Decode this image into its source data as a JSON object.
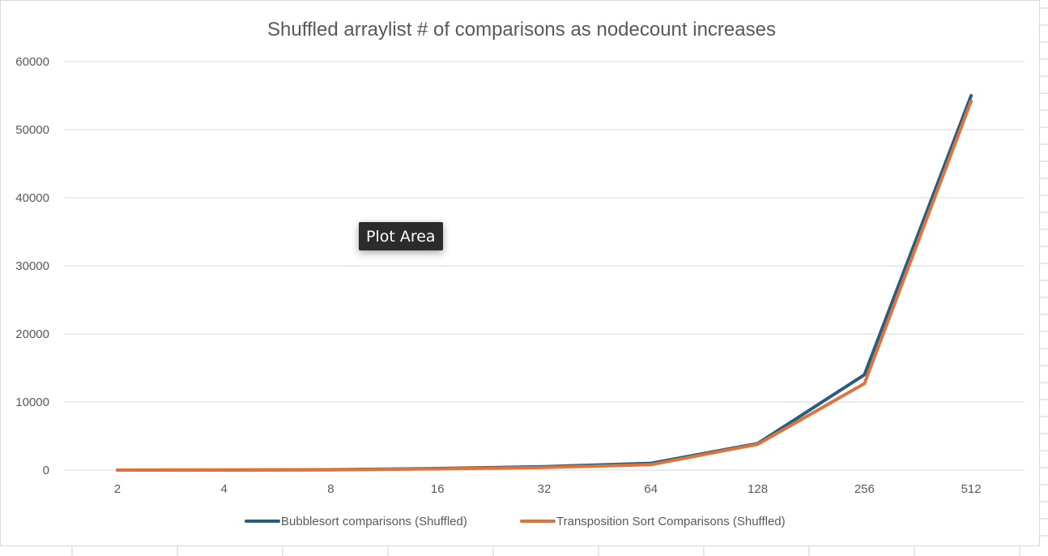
{
  "chart_data": {
    "type": "line",
    "title": "Shuffled arraylist # of comparisons as nodecount increases",
    "xlabel": "",
    "ylabel": "",
    "categories": [
      "2",
      "4",
      "8",
      "16",
      "32",
      "64",
      "128",
      "256",
      "512"
    ],
    "ylim": [
      0,
      60000
    ],
    "yticks": [
      "0",
      "10000",
      "20000",
      "30000",
      "40000",
      "50000",
      "60000"
    ],
    "grid": true,
    "legend_position": "bottom",
    "series": [
      {
        "name": "Bubblesort comparisons (Shuffled)",
        "color": "#255e7e",
        "values": [
          1,
          12,
          56,
          240,
          500,
          1000,
          3900,
          14000,
          55000
        ]
      },
      {
        "name": "Transposition Sort Comparisons (Shuffled)",
        "color": "#e0733b",
        "values": [
          1,
          8,
          40,
          180,
          380,
          800,
          3800,
          12700,
          54200
        ]
      }
    ]
  },
  "tooltip": {
    "text": "Plot Area"
  }
}
